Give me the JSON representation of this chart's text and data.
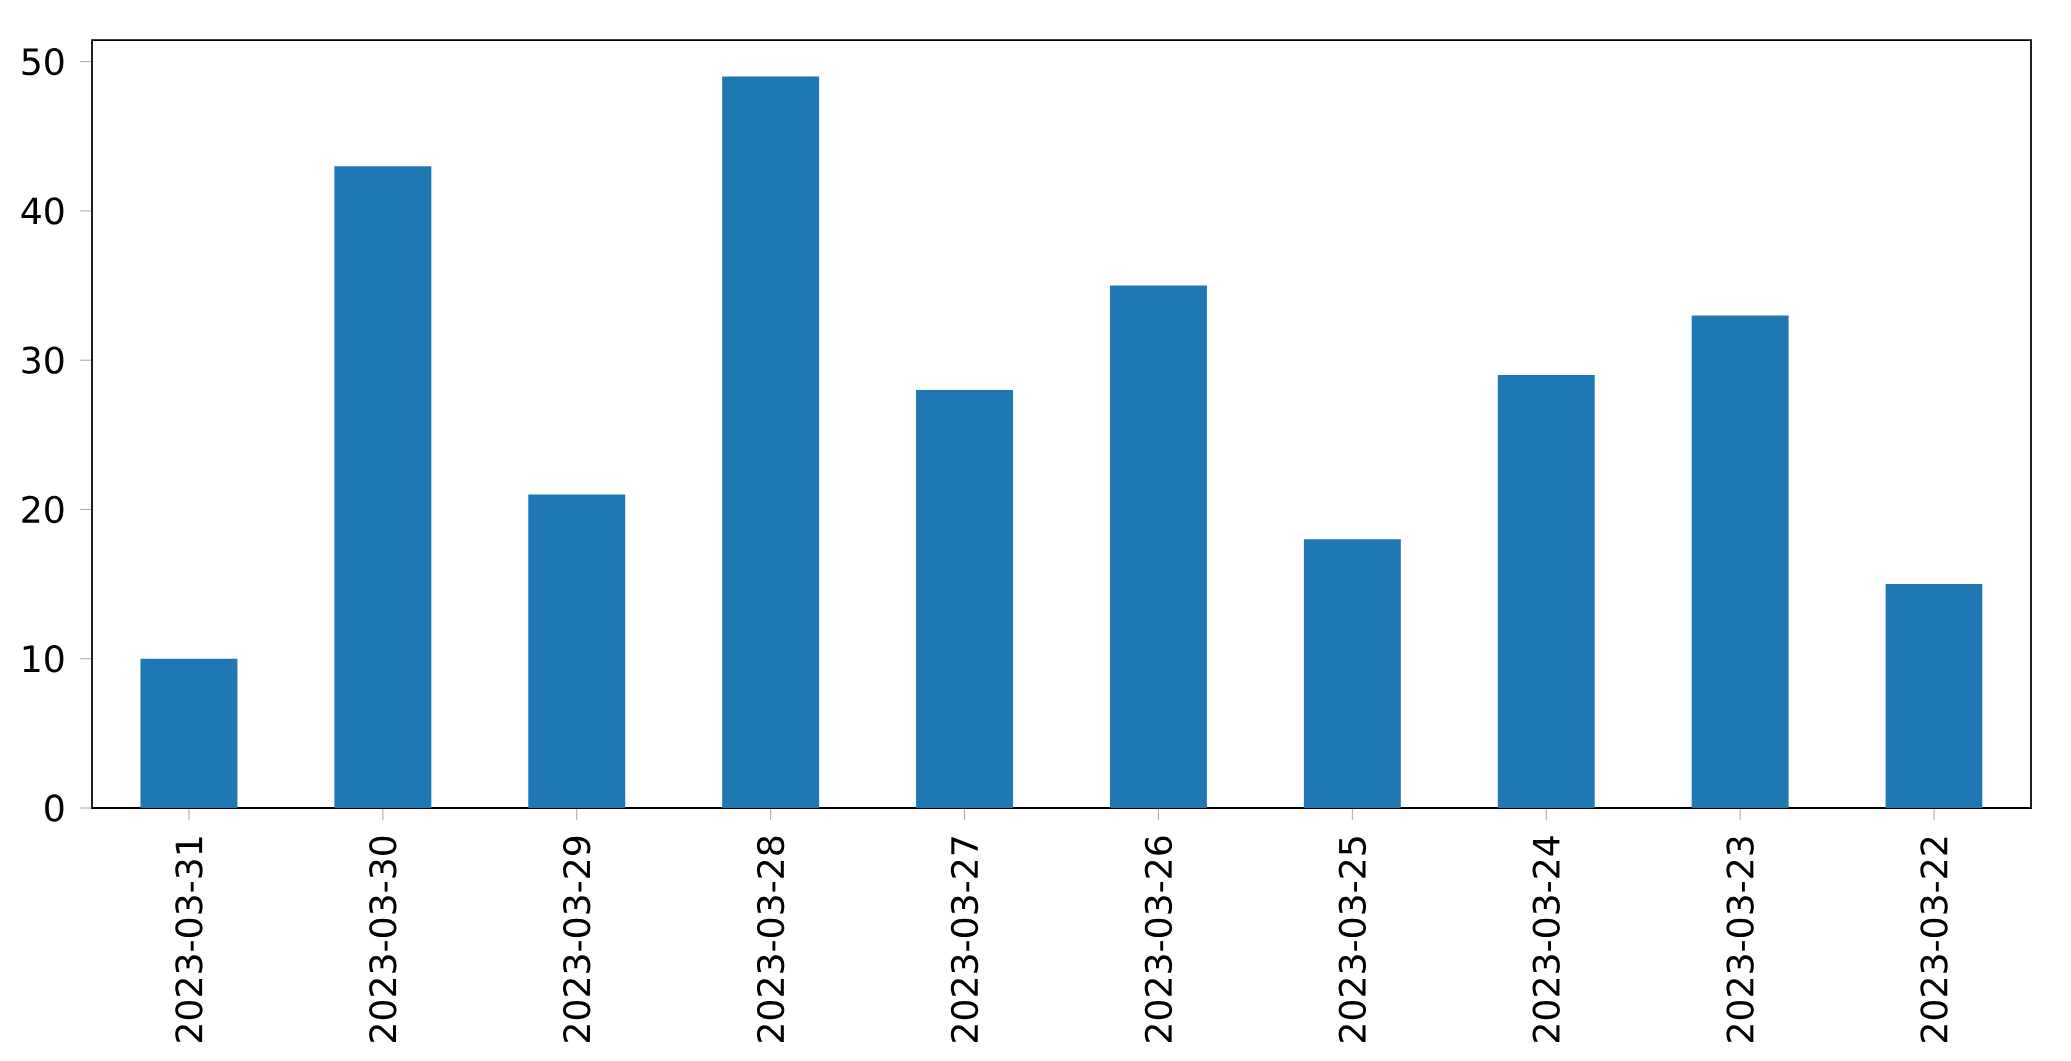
{
  "chart_data": {
    "type": "bar",
    "categories": [
      "2023-03-31",
      "2023-03-30",
      "2023-03-29",
      "2023-03-28",
      "2023-03-27",
      "2023-03-26",
      "2023-03-25",
      "2023-03-24",
      "2023-03-23",
      "2023-03-22"
    ],
    "values": [
      10,
      43,
      21,
      49,
      28,
      35,
      18,
      29,
      33,
      15
    ],
    "color": "#1f77b4",
    "ylim": [
      0,
      51.45
    ],
    "yticks": [
      0,
      10,
      20,
      30,
      40,
      50
    ],
    "grid": false
  }
}
